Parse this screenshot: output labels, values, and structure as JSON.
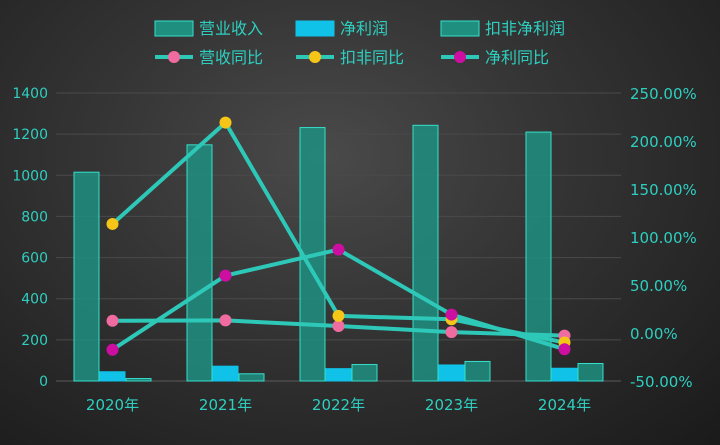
{
  "chart_data": {
    "type": "bar",
    "categories": [
      "2020年",
      "2021年",
      "2022年",
      "2023年",
      "2024年"
    ],
    "left_axis": {
      "min": 0,
      "max": 1400,
      "ticks": [
        "0",
        "200",
        "400",
        "600",
        "800",
        "1000",
        "1200",
        "1400"
      ]
    },
    "right_axis": {
      "min": -50,
      "max": 250,
      "ticks": [
        "-50.00%",
        "0.00%",
        "50.00%",
        "100.00%",
        "150.00%",
        "200.00%",
        "250.00%"
      ]
    },
    "bar_series": [
      {
        "name": "营业收入",
        "values": [
          1015,
          1148,
          1232,
          1243,
          1210
        ],
        "color": "#1f8f80",
        "border": "#35e0cc"
      },
      {
        "name": "净利润",
        "values": [
          45,
          72,
          60,
          78,
          62
        ],
        "color": "#11c2e8",
        "border": "#11c2e8"
      },
      {
        "name": "扣非净利润",
        "values": [
          12,
          35,
          80,
          95,
          85
        ],
        "color": "#1f8f80",
        "border": "#35e0cc"
      }
    ],
    "line_series": [
      {
        "name": "营收同比",
        "values": [
          12.7,
          13.1,
          7.3,
          0.9,
          -2.7
        ],
        "marker": "#f06ca0"
      },
      {
        "name": "扣非同比",
        "values": [
          113.6,
          219.2,
          17.8,
          14.3,
          -9.9
        ],
        "marker": "#f5c518"
      },
      {
        "name": "净利同比",
        "values": [
          -17.4,
          59.8,
          86.9,
          19.2,
          -16.9
        ],
        "marker": "#cc0fa0"
      }
    ],
    "line_color": "#2ec8b9",
    "grid": true,
    "legend_position": "top-center"
  }
}
